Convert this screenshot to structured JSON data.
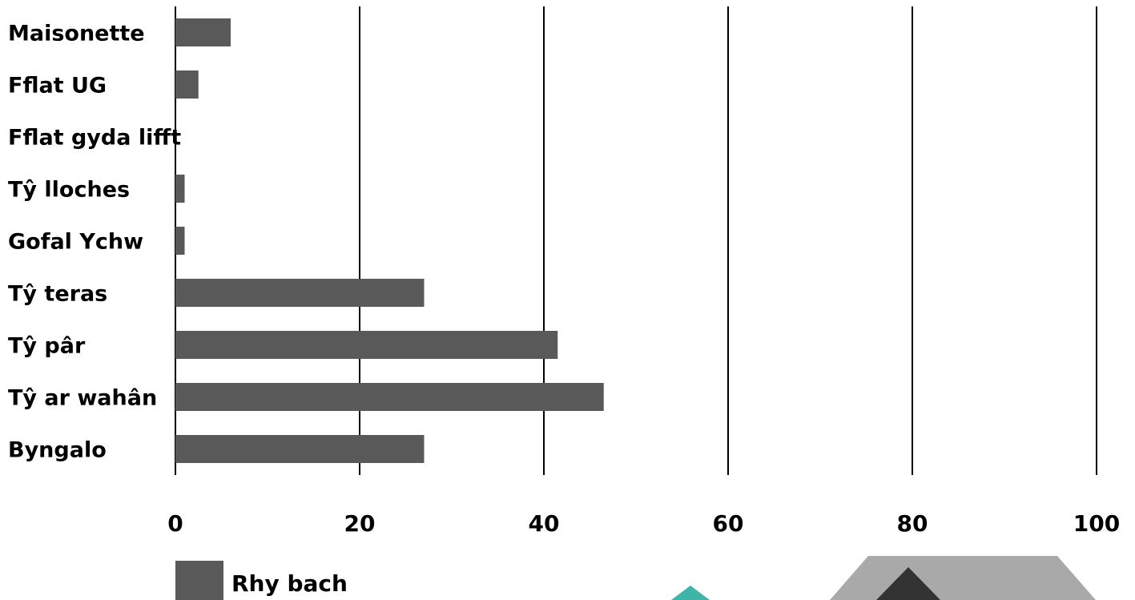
{
  "chart_data": {
    "type": "bar",
    "orientation": "horizontal",
    "categories": [
      "Maisonette",
      "Fflat UG",
      "Fflat gyda lifft",
      "Tŷ lloches",
      "Gofal Ychw",
      "Tŷ teras",
      "Tŷ pâr",
      "Tŷ ar wahân",
      "Byngalo"
    ],
    "series": [
      {
        "name": "Rhy bach",
        "color": "#595959",
        "values": [
          6,
          2.5,
          0,
          1,
          1,
          27,
          41.5,
          46.5,
          27
        ]
      }
    ],
    "xlim": [
      0,
      100
    ],
    "x_ticks": [
      "0",
      "20",
      "40",
      "60",
      "80",
      "100"
    ],
    "grid": "vertical",
    "legend_position": "bottom-left"
  },
  "decorations": {
    "teal": "#3fb5aa",
    "light_gray": "#a9a9a9",
    "dark": "#333333"
  }
}
